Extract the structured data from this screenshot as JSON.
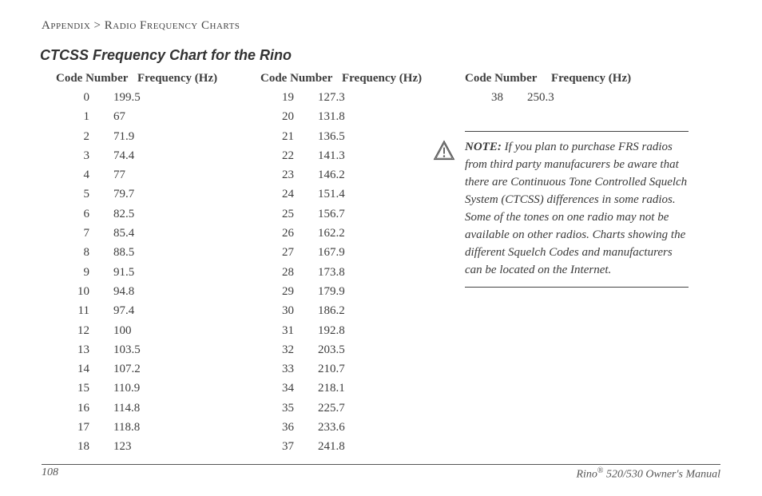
{
  "breadcrumb": {
    "a": "Appendix",
    "sep": ">",
    "b": "Radio Frequency Charts"
  },
  "title": "CTCSS Frequency Chart for the Rino",
  "headers": {
    "code": "Code Number",
    "freq": "Frequency (Hz)"
  },
  "columns": [
    [
      {
        "code": "0",
        "freq": "199.5"
      },
      {
        "code": "1",
        "freq": "67"
      },
      {
        "code": "2",
        "freq": "71.9"
      },
      {
        "code": "3",
        "freq": "74.4"
      },
      {
        "code": "4",
        "freq": "77"
      },
      {
        "code": "5",
        "freq": "79.7"
      },
      {
        "code": "6",
        "freq": "82.5"
      },
      {
        "code": "7",
        "freq": "85.4"
      },
      {
        "code": "8",
        "freq": "88.5"
      },
      {
        "code": "9",
        "freq": "91.5"
      },
      {
        "code": "10",
        "freq": "94.8"
      },
      {
        "code": "11",
        "freq": "97.4"
      },
      {
        "code": "12",
        "freq": "100"
      },
      {
        "code": "13",
        "freq": "103.5"
      },
      {
        "code": "14",
        "freq": "107.2"
      },
      {
        "code": "15",
        "freq": "110.9"
      },
      {
        "code": "16",
        "freq": "114.8"
      },
      {
        "code": "17",
        "freq": "118.8"
      },
      {
        "code": "18",
        "freq": "123"
      }
    ],
    [
      {
        "code": "19",
        "freq": "127.3"
      },
      {
        "code": "20",
        "freq": "131.8"
      },
      {
        "code": "21",
        "freq": "136.5"
      },
      {
        "code": "22",
        "freq": "141.3"
      },
      {
        "code": "23",
        "freq": "146.2"
      },
      {
        "code": "24",
        "freq": "151.4"
      },
      {
        "code": "25",
        "freq": "156.7"
      },
      {
        "code": "26",
        "freq": "162.2"
      },
      {
        "code": "27",
        "freq": "167.9"
      },
      {
        "code": "28",
        "freq": "173.8"
      },
      {
        "code": "29",
        "freq": "179.9"
      },
      {
        "code": "30",
        "freq": "186.2"
      },
      {
        "code": "31",
        "freq": "192.8"
      },
      {
        "code": "32",
        "freq": "203.5"
      },
      {
        "code": "33",
        "freq": "210.7"
      },
      {
        "code": "34",
        "freq": "218.1"
      },
      {
        "code": "35",
        "freq": "225.7"
      },
      {
        "code": "36",
        "freq": "233.6"
      },
      {
        "code": "37",
        "freq": "241.8"
      }
    ],
    [
      {
        "code": "38",
        "freq": "250.3"
      }
    ]
  ],
  "note": {
    "label": "NOTE:",
    "text": " If you plan to purchase FRS radios from third party manufacurers be aware that there are Continuous Tone Controlled Squelch System (CTCSS) differences in some radios. Some of the tones on one radio may not be available on other radios. Charts showing the different Squelch Codes and manufacturers can be located on the Internet."
  },
  "footer": {
    "page": "108",
    "product_a": "Rino",
    "reg": "®",
    "product_b": " 520/530 Owner's Manual"
  }
}
